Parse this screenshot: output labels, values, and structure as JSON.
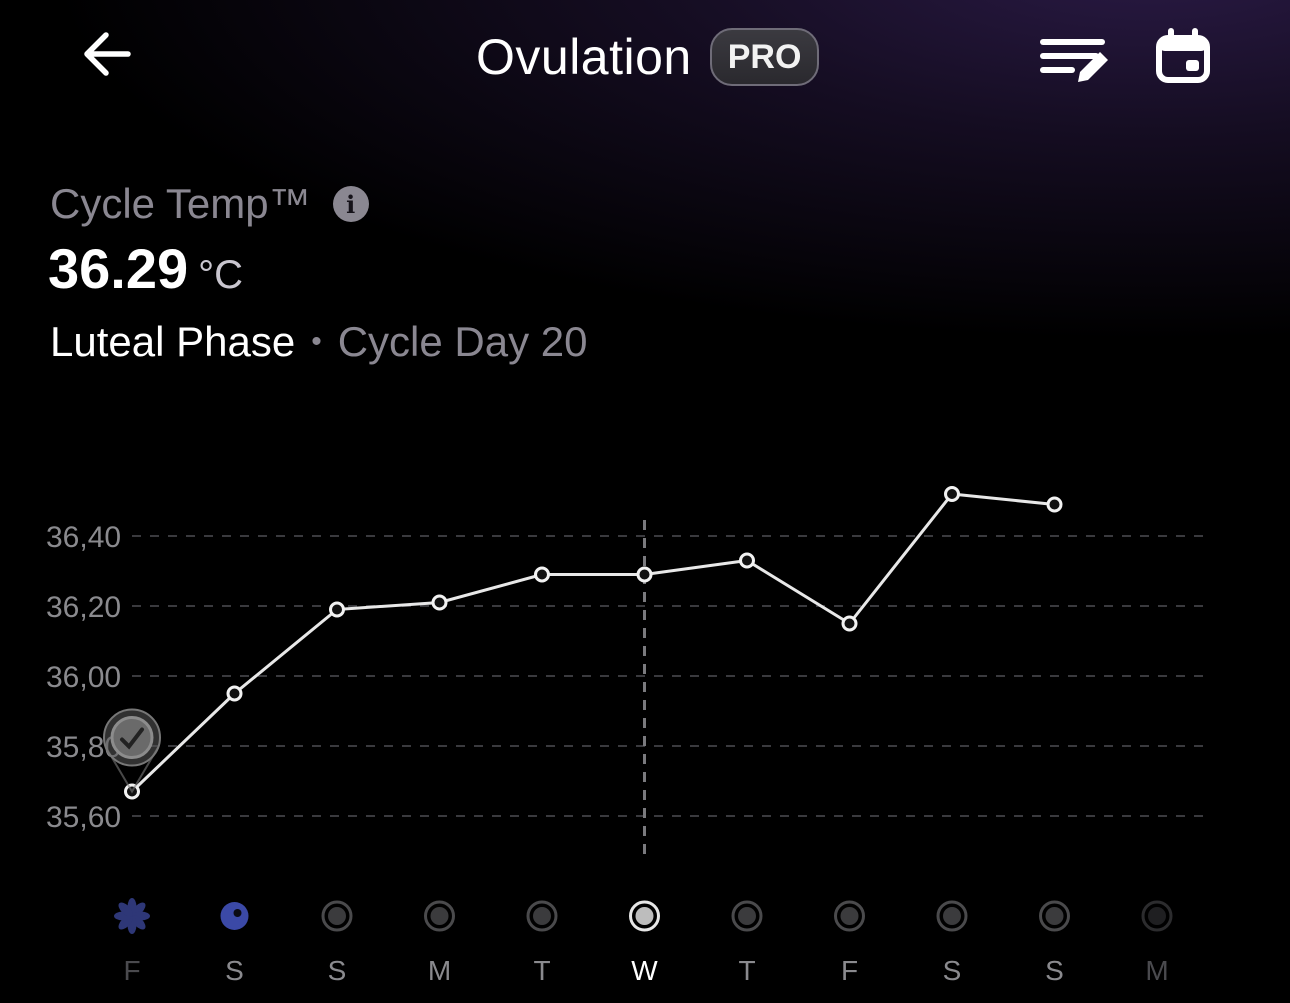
{
  "header": {
    "title": "Ovulation",
    "badge": "PRO",
    "icons": {
      "back": "arrow-left-icon",
      "edit": "edit-list-icon",
      "calendar": "calendar-icon"
    }
  },
  "metric": {
    "label": "Cycle Temp™",
    "value": "36.29",
    "unit": "°C",
    "phase": "Luteal Phase",
    "separator": "•",
    "cycle_day": "Cycle Day 20"
  },
  "chart_data": {
    "type": "line",
    "categories": [
      "F",
      "S",
      "S",
      "M",
      "T",
      "W",
      "T",
      "F",
      "S",
      "S",
      "M"
    ],
    "series": [
      {
        "values": [
          35.67,
          35.95,
          36.19,
          36.21,
          36.29,
          36.29,
          36.33,
          36.15,
          36.52,
          36.49,
          null
        ]
      }
    ],
    "y_ticks": [
      "36,40",
      "36,20",
      "36,00",
      "35,80",
      "35,60"
    ],
    "y_tick_values": [
      36.4,
      36.2,
      36.0,
      35.8,
      35.6
    ],
    "ylim": [
      35.55,
      36.55
    ],
    "grid": true,
    "selected_index": 5,
    "day_markers": [
      "flower",
      "filled",
      "ring",
      "ring",
      "ring",
      "selected",
      "ring",
      "ring",
      "ring",
      "ring",
      "faded"
    ],
    "colors": {
      "line": "#e8e8e8",
      "grid": "#3a3a3e",
      "axis_text": "#8a8a8e",
      "accent": "#3b49a6",
      "selected": "#ffffff"
    }
  }
}
